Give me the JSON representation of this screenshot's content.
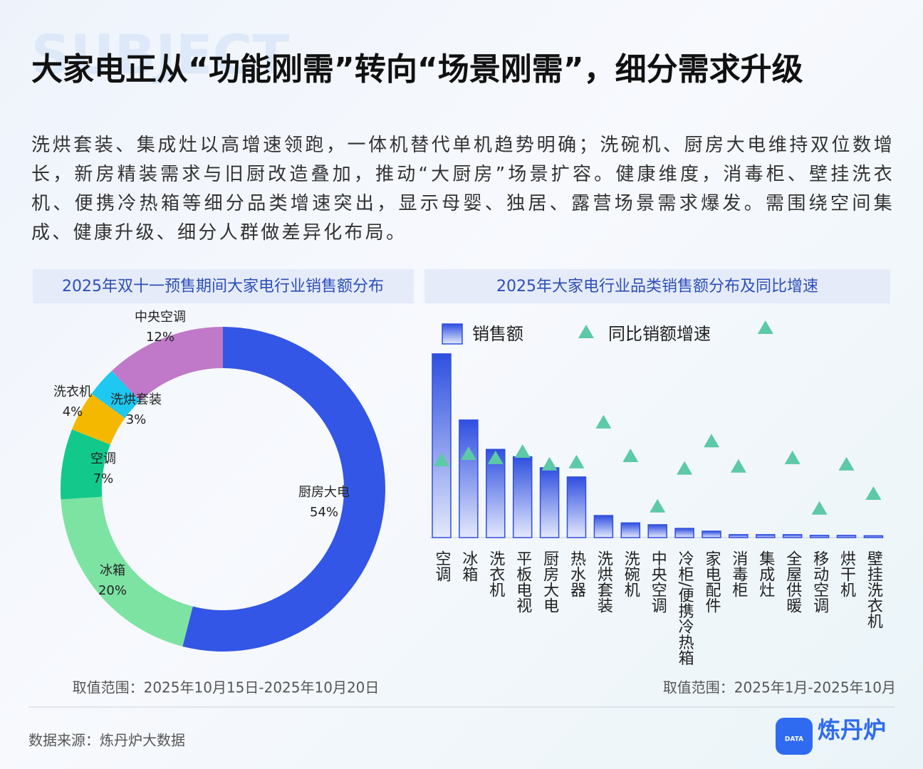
{
  "watermark": "SUBJECT",
  "title": "大家电正从“功能刚需”转向“场景刚需”，细分需求升级",
  "description": "洗烘套装、集成灶以高增速领跑，一体机替代单机趋势明确；洗碗机、厨房大电维持双位数增长，新房精装需求与旧厨改造叠加，推动“大厨房”场景扩容。健康维度，消毒柜、壁挂洗衣机、便携冷热箱等细分品类增速突出，显示母婴、独居、露营场景需求爆发。需围绕空间集成、健康升级、细分人群做差异化布局。",
  "chart_data": [
    {
      "type": "pie",
      "title": "2025年双十一预售期间大家电行业销售额分布",
      "categories": [
        "厨房大电",
        "冰箱",
        "空调",
        "洗衣机",
        "洗烘套装",
        "中央空调"
      ],
      "values": [
        54,
        20,
        7,
        4,
        3,
        12
      ],
      "value_labels": [
        "54%",
        "20%",
        "7%",
        "4%",
        "3%",
        "12%"
      ],
      "colors": [
        "#3356e6",
        "#7de3a3",
        "#12c98b",
        "#f5b800",
        "#1ec8f0",
        "#bf79c8"
      ],
      "note": "取值范围：2025年10月15日-2025年10月20日"
    },
    {
      "type": "bar",
      "title": "2025年大家电行业品类销售额分布及同比增速",
      "categories": [
        "空调",
        "冰箱",
        "洗衣机",
        "平板电视",
        "厨房大电",
        "热水器",
        "洗烘套装",
        "洗碗机",
        "中央空调",
        "冷柜/便携冷热箱",
        "家电配件",
        "消毒柜",
        "集成灶",
        "全屋供暖",
        "移动空调",
        "烘干机",
        "壁挂洗衣机"
      ],
      "series": [
        {
          "name": "销售额",
          "type": "bar",
          "color": "#2f4fe0",
          "values": [
            100,
            64,
            48,
            44,
            38,
            33,
            12,
            8,
            7,
            5,
            3.5,
            1.6,
            1.6,
            1.6,
            1.2,
            1.2,
            1
          ]
        },
        {
          "name": "同比销额增速",
          "type": "scatter",
          "axis": "y2",
          "color": "#5cc9a7",
          "values": [
            37,
            40,
            38,
            41,
            35,
            36,
            55,
            39,
            15,
            33,
            46,
            34,
            100,
            38,
            14,
            35,
            21
          ]
        }
      ],
      "ylim": [
        0,
        100
      ],
      "y2lim": [
        0,
        100
      ],
      "note": "取值范围：2025年1月-2025年10月"
    }
  ],
  "source": "数据来源：炼丹炉大数据",
  "logo": {
    "badge": "DATA",
    "name": "炼丹炉"
  }
}
